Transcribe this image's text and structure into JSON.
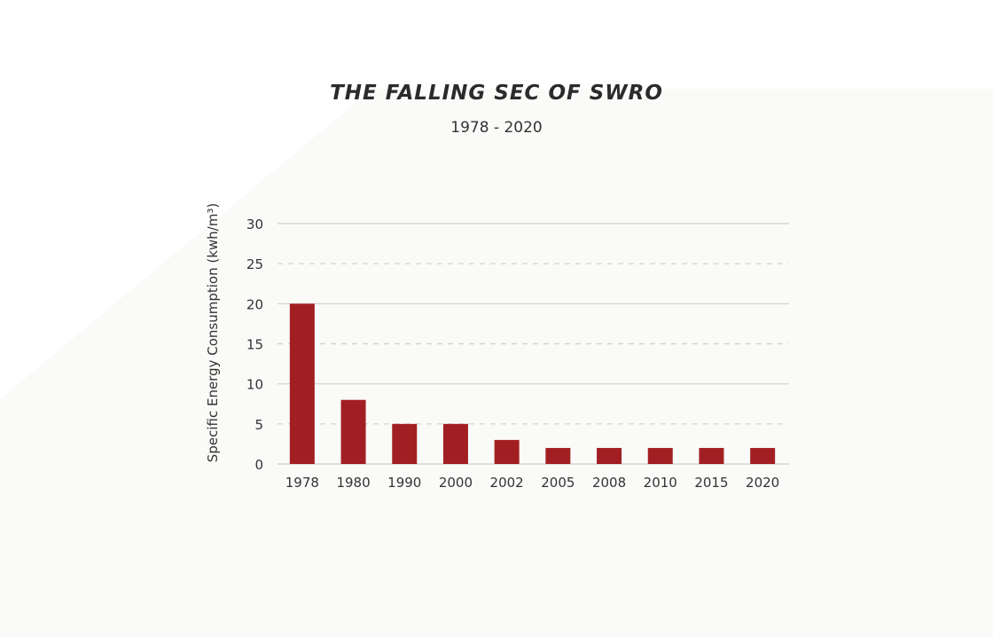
{
  "header": {
    "title": "THE FALLING SEC OF SWRO",
    "subtitle": "1978 - 2020"
  },
  "colors": {
    "bar": "#a11f22",
    "solid_grid": "#cfcfcf",
    "dashed_grid": "#cfcfcf",
    "background": "#fafaf8"
  },
  "chart_data": {
    "type": "bar",
    "title": "THE FALLING SEC OF SWRO",
    "subtitle": "1978 - 2020",
    "xlabel": "",
    "ylabel": "Specific Energy Consumption (kwh/m³)",
    "categories": [
      "1978",
      "1980",
      "1990",
      "2000",
      "2002",
      "2005",
      "2008",
      "2010",
      "2015",
      "2020"
    ],
    "values": [
      20,
      8,
      5,
      5,
      3,
      2,
      2,
      2,
      2,
      2
    ],
    "ylim": [
      0,
      30
    ],
    "yticks": [
      0,
      5,
      10,
      15,
      20,
      25,
      30
    ],
    "ytick_labels": [
      "0",
      "5",
      "10",
      "15",
      "20",
      "25",
      "30"
    ],
    "grid": true,
    "legend": "none"
  }
}
